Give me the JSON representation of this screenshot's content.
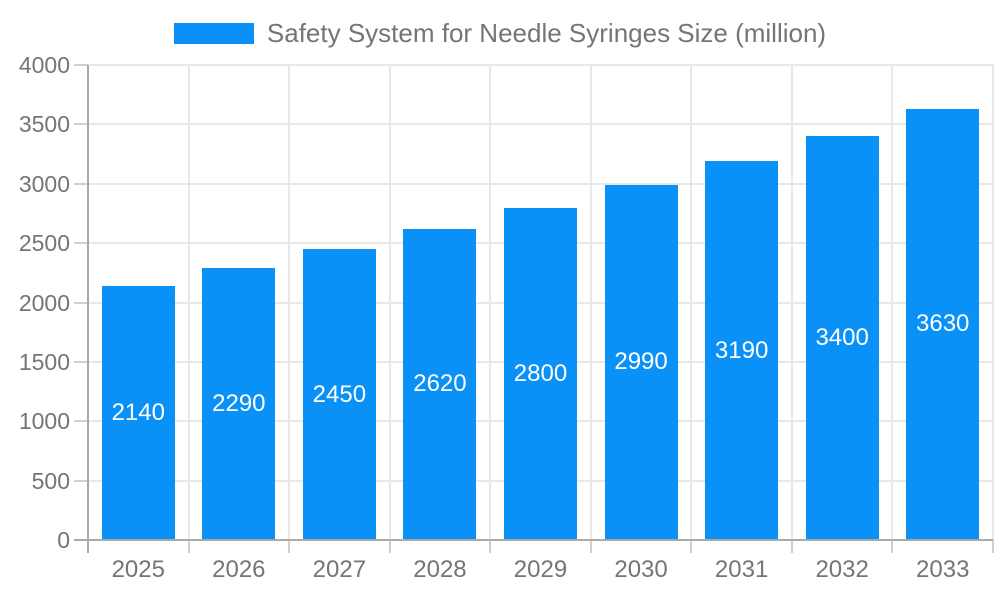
{
  "chart_data": {
    "type": "bar",
    "title": "Safety System for Needle Syringes Size (million)",
    "legend": [
      "Safety System for Needle Syringes Size (million)"
    ],
    "legend_position": "top-center",
    "categories": [
      "2025",
      "2026",
      "2027",
      "2028",
      "2029",
      "2030",
      "2031",
      "2032",
      "2033"
    ],
    "values": [
      2140,
      2290,
      2450,
      2620,
      2800,
      2990,
      3190,
      3400,
      3630
    ],
    "xlabel": "",
    "ylabel": "",
    "ylim": [
      0,
      4000
    ],
    "y_ticks": [
      0,
      500,
      1000,
      1500,
      2000,
      2500,
      3000,
      3500,
      4000
    ],
    "grid": true,
    "value_label_position": "inside-center",
    "bar_color": "#0a91f8",
    "value_label_color": "#ffffff",
    "tick_text_color": "#757575"
  }
}
